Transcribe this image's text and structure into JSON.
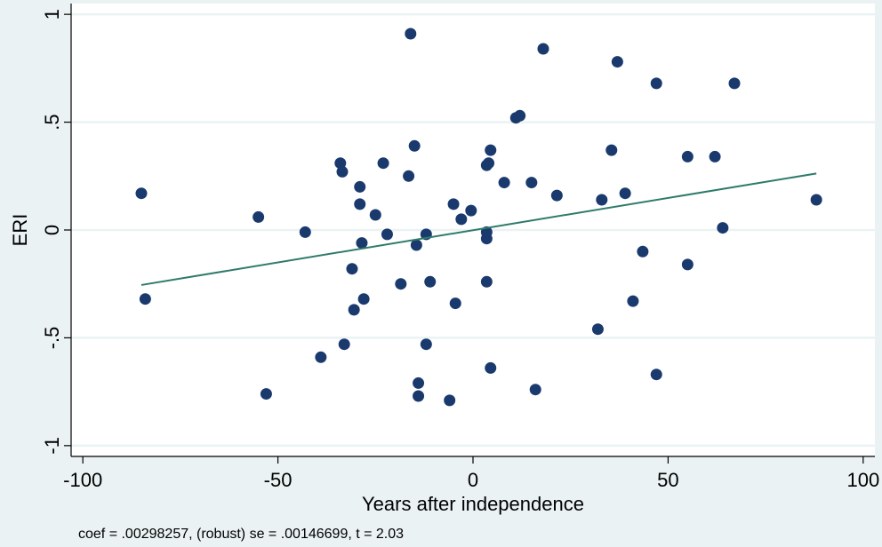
{
  "chart_data": {
    "type": "scatter",
    "xlabel": "Years after independence",
    "ylabel": "ERI",
    "xlim": [
      -103,
      103
    ],
    "ylim": [
      -1.05,
      1.05
    ],
    "x_ticks": [
      -100,
      -50,
      0,
      50,
      100
    ],
    "x_tick_labels": [
      "-100",
      "-50",
      "0",
      "50",
      "100"
    ],
    "y_ticks": [
      -1,
      -0.5,
      0,
      0.5,
      1
    ],
    "y_tick_labels": [
      "-1",
      "-.5",
      "0",
      ".5",
      "1"
    ],
    "grid": "horizontal",
    "note": "coef = .00298257, (robust) se = .00146699, t = 2.03",
    "colors": {
      "background": "#eaf2f3",
      "plot_area": "#ffffff",
      "points": "#1a3a6e",
      "fit_line": "#2e7b6a",
      "grid": "#eaf2f3"
    },
    "points": [
      {
        "x": -85,
        "y": 0.17
      },
      {
        "x": -84,
        "y": -0.32
      },
      {
        "x": -55,
        "y": 0.06
      },
      {
        "x": -53,
        "y": -0.76
      },
      {
        "x": -43,
        "y": -0.01
      },
      {
        "x": -39,
        "y": -0.59
      },
      {
        "x": -34,
        "y": 0.31
      },
      {
        "x": -33.5,
        "y": 0.27
      },
      {
        "x": -33,
        "y": -0.53
      },
      {
        "x": -31,
        "y": -0.18
      },
      {
        "x": -30.5,
        "y": -0.37
      },
      {
        "x": -29,
        "y": 0.2
      },
      {
        "x": -29,
        "y": 0.12
      },
      {
        "x": -28.5,
        "y": -0.06
      },
      {
        "x": -28,
        "y": -0.32
      },
      {
        "x": -25,
        "y": 0.07
      },
      {
        "x": -23,
        "y": 0.31
      },
      {
        "x": -22,
        "y": -0.02
      },
      {
        "x": -18.5,
        "y": -0.25
      },
      {
        "x": -16.5,
        "y": 0.25
      },
      {
        "x": -16,
        "y": 0.91
      },
      {
        "x": -15,
        "y": 0.39
      },
      {
        "x": -14.5,
        "y": -0.07
      },
      {
        "x": -14,
        "y": -0.77
      },
      {
        "x": -14,
        "y": -0.71
      },
      {
        "x": -12,
        "y": -0.02
      },
      {
        "x": -12,
        "y": -0.53
      },
      {
        "x": -11,
        "y": -0.24
      },
      {
        "x": -6,
        "y": -0.79
      },
      {
        "x": -5,
        "y": 0.12
      },
      {
        "x": -4.5,
        "y": -0.34
      },
      {
        "x": -3,
        "y": 0.05
      },
      {
        "x": -0.5,
        "y": 0.09
      },
      {
        "x": 3.5,
        "y": -0.01
      },
      {
        "x": 3.5,
        "y": -0.04
      },
      {
        "x": 3.5,
        "y": 0.3
      },
      {
        "x": 3.5,
        "y": -0.24
      },
      {
        "x": 4,
        "y": 0.31
      },
      {
        "x": 4.5,
        "y": 0.37
      },
      {
        "x": 4.5,
        "y": -0.64
      },
      {
        "x": 8,
        "y": 0.22
      },
      {
        "x": 11,
        "y": 0.52
      },
      {
        "x": 12,
        "y": 0.53
      },
      {
        "x": 15,
        "y": 0.22
      },
      {
        "x": 16,
        "y": -0.74
      },
      {
        "x": 18,
        "y": 0.84
      },
      {
        "x": 21.5,
        "y": 0.16
      },
      {
        "x": 32,
        "y": -0.46
      },
      {
        "x": 33,
        "y": 0.14
      },
      {
        "x": 35.5,
        "y": 0.37
      },
      {
        "x": 37,
        "y": 0.78
      },
      {
        "x": 39,
        "y": 0.17
      },
      {
        "x": 41,
        "y": -0.33
      },
      {
        "x": 43.5,
        "y": -0.1
      },
      {
        "x": 47,
        "y": -0.67
      },
      {
        "x": 47,
        "y": 0.68
      },
      {
        "x": 55,
        "y": 0.34
      },
      {
        "x": 55,
        "y": -0.16
      },
      {
        "x": 62,
        "y": 0.34
      },
      {
        "x": 64,
        "y": 0.01
      },
      {
        "x": 67,
        "y": 0.68
      },
      {
        "x": 88,
        "y": 0.14
      }
    ],
    "fit_line": {
      "x": [
        -85,
        88
      ],
      "y": [
        -0.255,
        0.262
      ]
    }
  }
}
